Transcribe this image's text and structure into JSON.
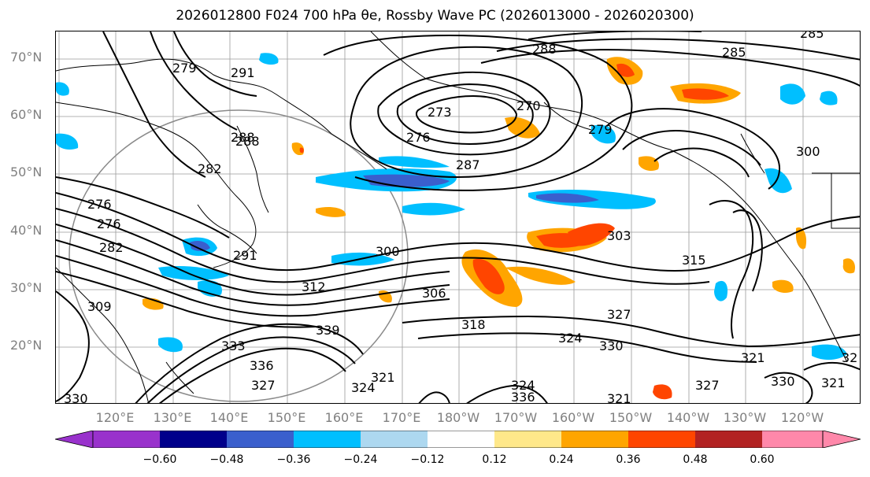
{
  "title": "2026012800 F024 700 hPa θe, Rossby Wave PC (2026013000 - 2026020300)",
  "map": {
    "lat_labels": [
      "70°N",
      "60°N",
      "50°N",
      "40°N",
      "30°N",
      "20°N"
    ],
    "lon_labels": [
      "120°E",
      "130°E",
      "140°E",
      "150°E",
      "160°E",
      "170°E",
      "180°W",
      "170°W",
      "160°W",
      "150°W",
      "140°W",
      "130°W",
      "120°W"
    ],
    "lat_range": [
      10,
      75
    ],
    "lon_range_note": "centered on 180°",
    "contour_labels": [
      "285",
      "288",
      "291",
      "279",
      "276",
      "276",
      "273",
      "270",
      "288",
      "287",
      "282",
      "285",
      "276",
      "282",
      "279",
      "291",
      "300",
      "303",
      "306",
      "312",
      "315",
      "300",
      "309",
      "318",
      "324",
      "327",
      "330",
      "333",
      "336",
      "339",
      "324",
      "321",
      "327",
      "321",
      "330",
      "321",
      "327",
      "32",
      "321",
      "324",
      "336",
      "330",
      "288"
    ],
    "contour_variable": "700 hPa θe (K)",
    "grid": true
  },
  "colorbar": {
    "ticks": [
      "−0.60",
      "−0.48",
      "−0.36",
      "−0.24",
      "−0.12",
      "0.12",
      "0.24",
      "0.36",
      "0.48",
      "0.60"
    ],
    "colors": [
      "#9932CC",
      "#00008B",
      "#3A5FCD",
      "#00BFFF",
      "#ADD8F0",
      "#FFFFFF",
      "#FFE88A",
      "#FFA500",
      "#FF4500",
      "#B22222",
      "#FF88AA"
    ],
    "extend": "both"
  }
}
